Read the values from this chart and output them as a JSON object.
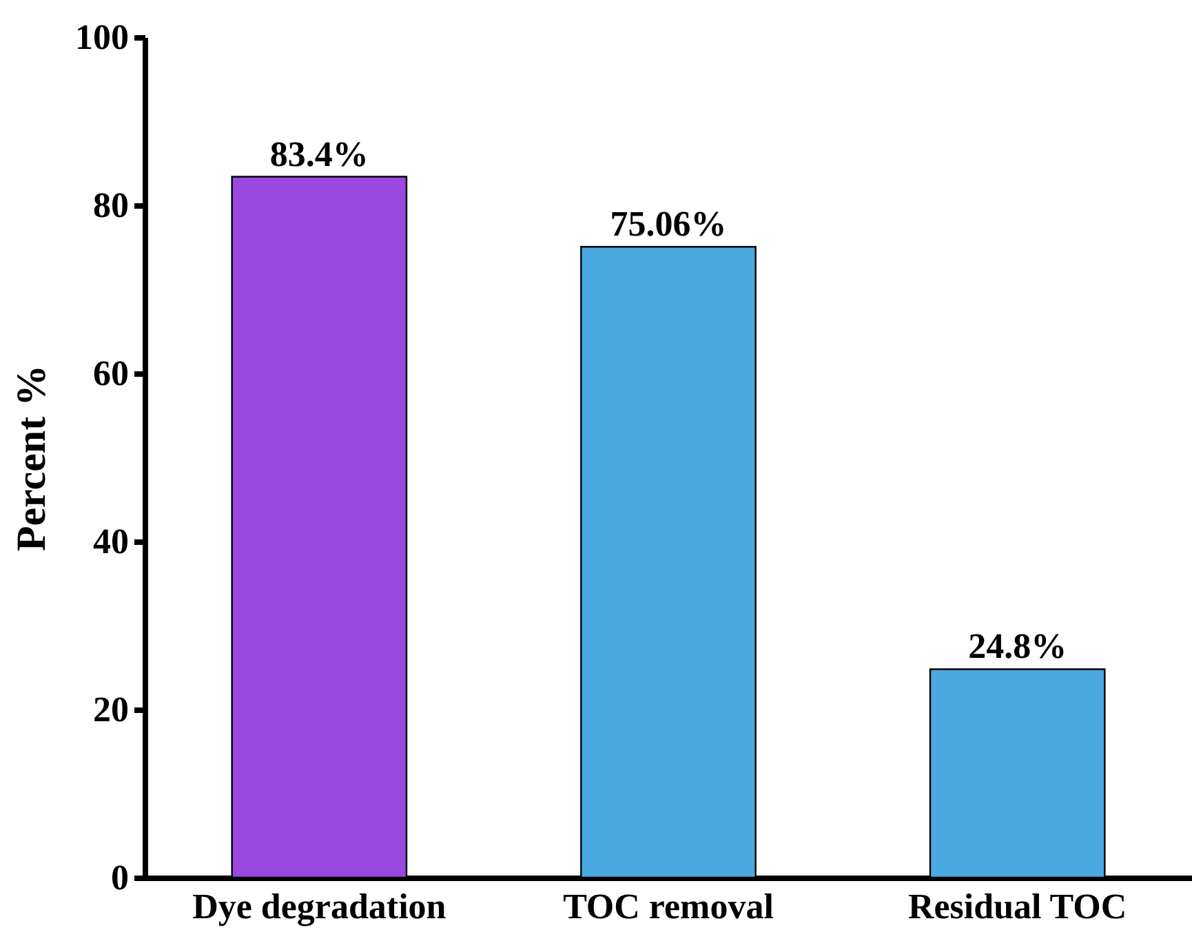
{
  "chart_data": {
    "type": "bar",
    "ylabel": "Percent %",
    "categories": [
      "Dye degradation",
      "TOC removal",
      "Residual TOC"
    ],
    "values": [
      83.4,
      75.06,
      24.8
    ],
    "colors": [
      "#9a48e0",
      "#4aa8e0",
      "#4aa8e0"
    ],
    "value_labels": [
      "83.4%",
      "75.06%",
      "24.8%"
    ],
    "ylim": [
      0,
      100
    ],
    "yticks": [
      0,
      20,
      40,
      60,
      80,
      100
    ],
    "grid": false,
    "legend": false
  }
}
